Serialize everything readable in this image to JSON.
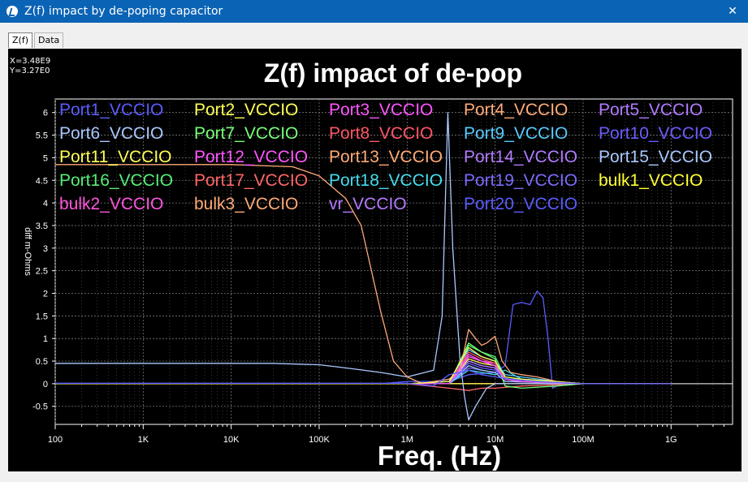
{
  "window": {
    "title": "Z(f) impact by de-poping capacitor",
    "close_label": "✕"
  },
  "tabs": [
    {
      "label": "Z(f)"
    },
    {
      "label": "Data"
    }
  ],
  "cursor_readout": {
    "x": "X=3.48E9",
    "y": "Y=3.27E0"
  },
  "chart_data": {
    "type": "line",
    "title": "Z(f) impact of de-pop",
    "xlabel": "Freq. (Hz)",
    "ylabel": "diff m-Ohms",
    "x_scale": "log",
    "xlim": [
      100,
      5000000000
    ],
    "ylim": [
      -0.9,
      6.3
    ],
    "x_tick_values": [
      100,
      1000,
      10000,
      100000,
      1000000,
      10000000,
      100000000,
      1000000000
    ],
    "x_tick_labels": [
      "100",
      "1K",
      "10K",
      "100K",
      "1M",
      "10M",
      "100M",
      "1G"
    ],
    "y_tick_values": [
      -0.5,
      0,
      0.5,
      1,
      1.5,
      2,
      2.5,
      3,
      3.5,
      4,
      4.5,
      5,
      5.5,
      6
    ],
    "y_tick_labels": [
      "-0.5",
      "0",
      "0.5",
      "1",
      "1.5",
      "2",
      "2.5",
      "3",
      "3.5",
      "4",
      "4.5",
      "5",
      "5.5",
      "6"
    ],
    "grid": true,
    "legend_position": "top",
    "series": [
      {
        "name": "Port1_VCCIO",
        "color": "#5b5bff",
        "values": [
          [
            100,
            0.01
          ],
          [
            1000000.0,
            0.01
          ],
          [
            2000000.0,
            -0.05
          ],
          [
            3000000.0,
            0.2
          ],
          [
            5000000.0,
            0.3
          ],
          [
            7000000.0,
            0.2
          ],
          [
            10000000.0,
            0.15
          ],
          [
            15000000.0,
            0.1
          ],
          [
            30000000.0,
            0.05
          ],
          [
            100000000.0,
            0.0
          ],
          [
            1000000000.0,
            0.0
          ]
        ]
      },
      {
        "name": "Port2_VCCIO",
        "color": "#ffff55",
        "values": [
          [
            100,
            0.0
          ],
          [
            1000000.0,
            0.0
          ],
          [
            3000000.0,
            0.05
          ],
          [
            5000000.0,
            0.8
          ],
          [
            7000000.0,
            0.6
          ],
          [
            10000000.0,
            0.5
          ],
          [
            13000000.0,
            0.15
          ],
          [
            20000000.0,
            0.1
          ],
          [
            50000000.0,
            0.05
          ],
          [
            100000000.0,
            0.0
          ],
          [
            1000000000.0,
            0.0
          ]
        ]
      },
      {
        "name": "Port3_VCCIO",
        "color": "#ff55ff",
        "values": [
          [
            100,
            0.0
          ],
          [
            1000000.0,
            0.0
          ],
          [
            3000000.0,
            0.0
          ],
          [
            5000000.0,
            0.6
          ],
          [
            7000000.0,
            0.5
          ],
          [
            10000000.0,
            0.4
          ],
          [
            13000000.0,
            0.1
          ],
          [
            20000000.0,
            0.05
          ],
          [
            100000000.0,
            0.0
          ],
          [
            1000000000.0,
            0.0
          ]
        ]
      },
      {
        "name": "Port4_VCCIO",
        "color": "#ffaa77",
        "values": [
          [
            100,
            4.85
          ],
          [
            10000.0,
            4.85
          ],
          [
            50000.0,
            4.8
          ],
          [
            100000.0,
            4.6
          ],
          [
            200000.0,
            4.1
          ],
          [
            300000.0,
            3.5
          ],
          [
            500000.0,
            1.6
          ],
          [
            700000.0,
            0.5
          ],
          [
            1000000.0,
            0.15
          ],
          [
            1500000.0,
            0.0
          ],
          [
            2000000.0,
            0.05
          ],
          [
            3000000.0,
            0.1
          ],
          [
            4000000.0,
            0.3
          ],
          [
            5000000.0,
            1.2
          ],
          [
            6000000.0,
            1.0
          ],
          [
            7000000.0,
            0.85
          ],
          [
            8000000.0,
            0.9
          ],
          [
            10000000.0,
            1.05
          ],
          [
            12000000.0,
            0.5
          ],
          [
            15000000.0,
            0.25
          ],
          [
            20000000.0,
            0.2
          ],
          [
            30000000.0,
            0.15
          ],
          [
            50000000.0,
            0.05
          ],
          [
            100000000.0,
            0.0
          ],
          [
            1000000000.0,
            0.0
          ]
        ]
      },
      {
        "name": "Port5_VCCIO",
        "color": "#b27bff",
        "values": [
          [
            100,
            0.0
          ],
          [
            1000000.0,
            0.0
          ],
          [
            3000000.0,
            0.0
          ],
          [
            5000000.0,
            0.5
          ],
          [
            7000000.0,
            0.4
          ],
          [
            10000000.0,
            0.35
          ],
          [
            13000000.0,
            0.1
          ],
          [
            20000000.0,
            0.05
          ],
          [
            100000000.0,
            0.0
          ],
          [
            1000000000.0,
            0.0
          ]
        ]
      },
      {
        "name": "Port6_VCCIO",
        "color": "#aac8ff",
        "values": [
          [
            100,
            0.45
          ],
          [
            30000.0,
            0.45
          ],
          [
            100000.0,
            0.42
          ],
          [
            200000.0,
            0.35
          ],
          [
            500000.0,
            0.25
          ],
          [
            1000000.0,
            0.15
          ],
          [
            2000000.0,
            0.3
          ],
          [
            2500000.0,
            1.5
          ],
          [
            2900000.0,
            6.0
          ],
          [
            3300000.0,
            3.0
          ],
          [
            4000000.0,
            0.5
          ],
          [
            4500000.0,
            -0.3
          ],
          [
            5000000.0,
            -0.8
          ],
          [
            6000000.0,
            -0.5
          ],
          [
            8000000.0,
            -0.1
          ],
          [
            10000000.0,
            0.0
          ],
          [
            20000000.0,
            0.0
          ],
          [
            50000000.0,
            0.0
          ],
          [
            100000000.0,
            0.0
          ],
          [
            1000000000.0,
            0.0
          ]
        ]
      },
      {
        "name": "Port7_VCCIO",
        "color": "#77ff77",
        "values": [
          [
            100,
            0.0
          ],
          [
            1000000.0,
            0.0
          ],
          [
            3000000.0,
            0.0
          ],
          [
            5000000.0,
            0.9
          ],
          [
            7000000.0,
            0.7
          ],
          [
            10000000.0,
            0.55
          ],
          [
            13000000.0,
            -0.05
          ],
          [
            20000000.0,
            -0.1
          ],
          [
            50000000.0,
            -0.05
          ],
          [
            100000000.0,
            0.0
          ],
          [
            1000000000.0,
            0.0
          ]
        ]
      },
      {
        "name": "Port8_VCCIO",
        "color": "#ff5566",
        "values": [
          [
            100,
            0.0
          ],
          [
            1000000.0,
            0.0
          ],
          [
            3000000.0,
            0.0
          ],
          [
            5000000.0,
            0.7
          ],
          [
            7000000.0,
            0.55
          ],
          [
            10000000.0,
            0.45
          ],
          [
            13000000.0,
            0.1
          ],
          [
            20000000.0,
            0.05
          ],
          [
            100000000.0,
            0.0
          ],
          [
            1000000000.0,
            0.0
          ]
        ]
      },
      {
        "name": "Port9_VCCIO",
        "color": "#55ccff",
        "values": [
          [
            100,
            0.0
          ],
          [
            1000000.0,
            0.0
          ],
          [
            3000000.0,
            0.05
          ],
          [
            5000000.0,
            0.75
          ],
          [
            7000000.0,
            0.6
          ],
          [
            10000000.0,
            0.5
          ],
          [
            13000000.0,
            0.2
          ],
          [
            20000000.0,
            0.15
          ],
          [
            50000000.0,
            0.05
          ],
          [
            100000000.0,
            0.0
          ],
          [
            1000000000.0,
            0.0
          ]
        ]
      },
      {
        "name": "Port10_VCCIO",
        "color": "#6a5cff",
        "values": [
          [
            100,
            0.0
          ],
          [
            1000000.0,
            0.0
          ],
          [
            3000000.0,
            0.0
          ],
          [
            5000000.0,
            0.45
          ],
          [
            7000000.0,
            0.35
          ],
          [
            10000000.0,
            0.3
          ],
          [
            13000000.0,
            0.1
          ],
          [
            20000000.0,
            0.05
          ],
          [
            100000000.0,
            0.0
          ],
          [
            1000000000.0,
            0.0
          ]
        ]
      },
      {
        "name": "Port11_VCCIO",
        "color": "#ffff55",
        "values": [
          [
            100,
            0.0
          ],
          [
            1000000.0,
            0.0
          ],
          [
            3000000.0,
            0.0
          ],
          [
            5000000.0,
            0.55
          ],
          [
            7000000.0,
            0.45
          ],
          [
            10000000.0,
            0.4
          ],
          [
            13000000.0,
            0.1
          ],
          [
            20000000.0,
            0.05
          ],
          [
            100000000.0,
            0.0
          ],
          [
            1000000000.0,
            0.0
          ]
        ]
      },
      {
        "name": "Port12_VCCIO",
        "color": "#ff55ff",
        "values": [
          [
            100,
            0.0
          ],
          [
            1000000.0,
            0.0
          ],
          [
            3000000.0,
            0.0
          ],
          [
            5000000.0,
            0.65
          ],
          [
            7000000.0,
            0.5
          ],
          [
            10000000.0,
            0.45
          ],
          [
            13000000.0,
            0.1
          ],
          [
            20000000.0,
            0.05
          ],
          [
            100000000.0,
            0.0
          ],
          [
            1000000000.0,
            0.0
          ]
        ]
      },
      {
        "name": "Port13_VCCIO",
        "color": "#ffaa77",
        "values": [
          [
            100,
            0.0
          ],
          [
            1000000.0,
            0.0
          ],
          [
            3000000.0,
            0.0
          ],
          [
            5000000.0,
            0.6
          ],
          [
            7000000.0,
            0.5
          ],
          [
            10000000.0,
            0.4
          ],
          [
            13000000.0,
            0.1
          ],
          [
            20000000.0,
            0.05
          ],
          [
            100000000.0,
            0.0
          ],
          [
            1000000000.0,
            0.0
          ]
        ]
      },
      {
        "name": "Port14_VCCIO",
        "color": "#b27bff",
        "values": [
          [
            100,
            0.0
          ],
          [
            1000000.0,
            0.0
          ],
          [
            3000000.0,
            0.0
          ],
          [
            5000000.0,
            0.5
          ],
          [
            7000000.0,
            0.4
          ],
          [
            10000000.0,
            0.35
          ],
          [
            13000000.0,
            0.1
          ],
          [
            20000000.0,
            0.05
          ],
          [
            100000000.0,
            0.0
          ],
          [
            1000000000.0,
            0.0
          ]
        ]
      },
      {
        "name": "Port15_VCCIO",
        "color": "#aac8ff",
        "values": [
          [
            100,
            0.0
          ],
          [
            1000000.0,
            0.0
          ],
          [
            3000000.0,
            0.0
          ],
          [
            5000000.0,
            0.4
          ],
          [
            7000000.0,
            0.3
          ],
          [
            10000000.0,
            0.25
          ],
          [
            13000000.0,
            0.05
          ],
          [
            100000000.0,
            0.0
          ],
          [
            1000000000.0,
            0.0
          ]
        ]
      },
      {
        "name": "Port16_VCCIO",
        "color": "#55ee77",
        "values": [
          [
            100,
            0.0
          ],
          [
            1000000.0,
            0.0
          ],
          [
            3000000.0,
            0.0
          ],
          [
            5000000.0,
            0.85
          ],
          [
            7000000.0,
            0.7
          ],
          [
            10000000.0,
            0.6
          ],
          [
            13000000.0,
            0.15
          ],
          [
            20000000.0,
            0.1
          ],
          [
            100000000.0,
            0.0
          ],
          [
            1000000000.0,
            0.0
          ]
        ]
      },
      {
        "name": "Port17_VCCIO",
        "color": "#ff6666",
        "values": [
          [
            100,
            0.0
          ],
          [
            1000000.0,
            0.0
          ],
          [
            3000000.0,
            -0.1
          ],
          [
            5000000.0,
            -0.15
          ],
          [
            7000000.0,
            -0.1
          ],
          [
            10000000.0,
            -0.1
          ],
          [
            20000000.0,
            -0.05
          ],
          [
            100000000.0,
            0.0
          ],
          [
            1000000000.0,
            0.0
          ]
        ]
      },
      {
        "name": "Port18_VCCIO",
        "color": "#44ddee",
        "values": [
          [
            100,
            0.0
          ],
          [
            1000000.0,
            0.0
          ],
          [
            3000000.0,
            0.0
          ],
          [
            5000000.0,
            0.3
          ],
          [
            7000000.0,
            0.25
          ],
          [
            10000000.0,
            0.2
          ],
          [
            13000000.0,
            0.3
          ],
          [
            20000000.0,
            0.1
          ],
          [
            100000000.0,
            0.0
          ],
          [
            1000000000.0,
            0.0
          ]
        ]
      },
      {
        "name": "Port19_VCCIO",
        "color": "#7a6bff",
        "values": [
          [
            100,
            0.0
          ],
          [
            1000000.0,
            0.0
          ],
          [
            3000000.0,
            0.0
          ],
          [
            5000000.0,
            0.35
          ],
          [
            7000000.0,
            0.3
          ],
          [
            10000000.0,
            0.25
          ],
          [
            13000000.0,
            0.05
          ],
          [
            100000000.0,
            0.0
          ],
          [
            1000000000.0,
            0.0
          ]
        ]
      },
      {
        "name": "bulk1_VCCIO",
        "color": "#ffff33",
        "values": [
          [
            100,
            0.0
          ],
          [
            1000000.0,
            0.0
          ],
          [
            10000000.0,
            0.0
          ],
          [
            1000000000.0,
            0.0
          ]
        ]
      },
      {
        "name": "bulk2_VCCIO",
        "color": "#ff55dd",
        "values": [
          [
            100,
            0.0
          ],
          [
            1000000.0,
            0.0
          ],
          [
            10000000.0,
            0.0
          ],
          [
            1000000000.0,
            0.0
          ]
        ]
      },
      {
        "name": "bulk3_VCCIO",
        "color": "#ffaa77",
        "values": [
          [
            100,
            0.0
          ],
          [
            1000000.0,
            0.0
          ],
          [
            10000000.0,
            0.0
          ],
          [
            1000000000.0,
            0.0
          ]
        ]
      },
      {
        "name": "vr_VCCIO",
        "color": "#b27bff",
        "values": [
          [
            100,
            0.0
          ],
          [
            1000000.0,
            0.0
          ],
          [
            10000000.0,
            0.0
          ],
          [
            1000000000.0,
            0.0
          ]
        ]
      },
      {
        "name": "Port20_VCCIO",
        "color": "#5b5bff",
        "values": [
          [
            100,
            0.0
          ],
          [
            500000.0,
            0.0
          ],
          [
            1000000.0,
            0.05
          ],
          [
            3000000.0,
            0.05
          ],
          [
            5000000.0,
            0.2
          ],
          [
            10000000.0,
            0.25
          ],
          [
            13000000.0,
            0.4
          ],
          [
            16000000.0,
            1.75
          ],
          [
            20000000.0,
            1.8
          ],
          [
            25000000.0,
            1.75
          ],
          [
            30000000.0,
            2.05
          ],
          [
            35000000.0,
            1.9
          ],
          [
            40000000.0,
            1.0
          ],
          [
            45000000.0,
            -0.1
          ],
          [
            50000000.0,
            -0.05
          ],
          [
            60000000.0,
            0.0
          ],
          [
            100000000.0,
            0.0
          ],
          [
            1000000000.0,
            0.0
          ]
        ]
      }
    ]
  }
}
